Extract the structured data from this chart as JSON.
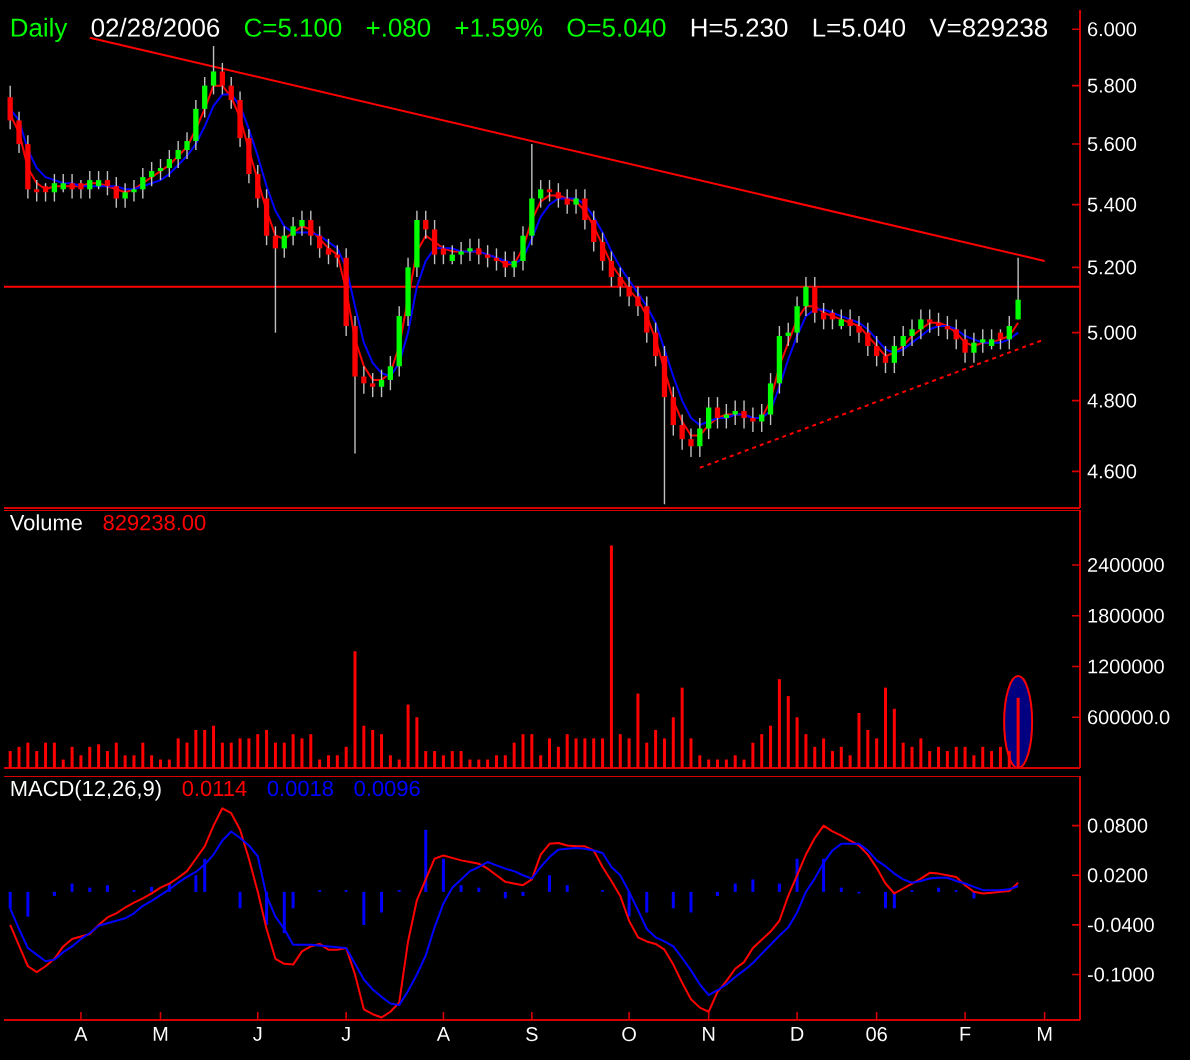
{
  "chart_data": [
    {
      "type": "candlestick",
      "title": "Daily",
      "annotations": [
        "02/28/2006",
        "C=5.100",
        "+.080",
        "+1.59%",
        "O=5.040",
        "H=5.230",
        "L=5.040",
        "V=829238"
      ],
      "categories": [
        null,
        null,
        null,
        null,
        null,
        null,
        null,
        null,
        null,
        null,
        null,
        null,
        null,
        null,
        null,
        null,
        null,
        null,
        null,
        null,
        null,
        null,
        null,
        null,
        null,
        null,
        null,
        null,
        null,
        null,
        null,
        null,
        null,
        null,
        null,
        null,
        null,
        null,
        null,
        null,
        null,
        null,
        null,
        null,
        null,
        null,
        null,
        null,
        null,
        null,
        null,
        null,
        null,
        null,
        null,
        null,
        null,
        null,
        null,
        null,
        null,
        null,
        null,
        null,
        null,
        null,
        null,
        null,
        null,
        null,
        null,
        null,
        null,
        null,
        null,
        null,
        null,
        null,
        null,
        null,
        null,
        null,
        null,
        null,
        null,
        null,
        null,
        null,
        null,
        null,
        null,
        null,
        null,
        null,
        null,
        null,
        null,
        null,
        null,
        null,
        null,
        null,
        null,
        null,
        null,
        null,
        null,
        null,
        null,
        null,
        null,
        null,
        null,
        null,
        null,
        null,
        null,
        null
      ],
      "ohlc": [
        [
          5.76,
          5.8,
          5.65,
          5.68
        ],
        [
          5.68,
          5.71,
          5.57,
          5.6
        ],
        [
          5.6,
          5.63,
          5.42,
          5.45
        ],
        [
          5.45,
          5.48,
          5.41,
          5.44
        ],
        [
          5.46,
          5.47,
          5.41,
          5.44
        ],
        [
          5.44,
          5.5,
          5.41,
          5.47
        ],
        [
          5.45,
          5.5,
          5.44,
          5.47
        ],
        [
          5.47,
          5.5,
          5.42,
          5.45
        ],
        [
          5.47,
          5.48,
          5.42,
          5.45
        ],
        [
          5.45,
          5.51,
          5.42,
          5.48
        ],
        [
          5.46,
          5.51,
          5.45,
          5.48
        ],
        [
          5.48,
          5.51,
          5.43,
          5.46
        ],
        [
          5.46,
          5.49,
          5.39,
          5.42
        ],
        [
          5.42,
          5.47,
          5.39,
          5.44
        ],
        [
          5.44,
          5.48,
          5.41,
          5.45
        ],
        [
          5.45,
          5.52,
          5.42,
          5.49
        ],
        [
          5.49,
          5.54,
          5.46,
          5.51
        ],
        [
          5.51,
          5.55,
          5.48,
          5.52
        ],
        [
          5.52,
          5.58,
          5.49,
          5.55
        ],
        [
          5.55,
          5.61,
          5.52,
          5.58
        ],
        [
          5.58,
          5.64,
          5.55,
          5.61
        ],
        [
          5.61,
          5.75,
          5.58,
          5.72
        ],
        [
          5.72,
          5.83,
          5.69,
          5.8
        ],
        [
          5.8,
          5.94,
          5.77,
          5.85
        ],
        [
          5.85,
          5.88,
          5.77,
          5.8
        ],
        [
          5.8,
          5.83,
          5.72,
          5.75
        ],
        [
          5.75,
          5.78,
          5.59,
          5.62
        ],
        [
          5.62,
          5.65,
          5.47,
          5.5
        ],
        [
          5.5,
          5.53,
          5.39,
          5.42
        ],
        [
          5.42,
          5.45,
          5.27,
          5.3
        ],
        [
          5.3,
          5.33,
          5.0,
          5.26
        ],
        [
          5.26,
          5.33,
          5.23,
          5.3
        ],
        [
          5.3,
          5.36,
          5.27,
          5.33
        ],
        [
          5.33,
          5.38,
          5.3,
          5.35
        ],
        [
          5.35,
          5.38,
          5.27,
          5.3
        ],
        [
          5.3,
          5.33,
          5.23,
          5.26
        ],
        [
          5.26,
          5.29,
          5.21,
          5.24
        ],
        [
          5.24,
          5.27,
          5.2,
          5.23
        ],
        [
          5.23,
          5.26,
          4.99,
          5.02
        ],
        [
          5.02,
          5.05,
          4.65,
          4.87
        ],
        [
          4.87,
          4.9,
          4.82,
          4.85
        ],
        [
          4.85,
          4.88,
          4.81,
          4.84
        ],
        [
          4.84,
          4.89,
          4.81,
          4.86
        ],
        [
          4.86,
          4.93,
          4.83,
          4.9
        ],
        [
          4.9,
          5.08,
          4.87,
          5.05
        ],
        [
          5.05,
          5.23,
          5.02,
          5.2
        ],
        [
          5.2,
          5.38,
          5.17,
          5.35
        ],
        [
          5.35,
          5.38,
          5.29,
          5.32
        ],
        [
          5.32,
          5.35,
          5.21,
          5.24
        ],
        [
          5.26,
          5.27,
          5.21,
          5.24
        ],
        [
          5.22,
          5.27,
          5.21,
          5.24
        ],
        [
          5.24,
          5.28,
          5.21,
          5.25
        ],
        [
          5.25,
          5.29,
          5.22,
          5.26
        ],
        [
          5.26,
          5.29,
          5.21,
          5.24
        ],
        [
          5.24,
          5.27,
          5.2,
          5.23
        ],
        [
          5.23,
          5.26,
          5.19,
          5.22
        ],
        [
          5.22,
          5.25,
          5.17,
          5.2
        ],
        [
          5.2,
          5.25,
          5.17,
          5.22
        ],
        [
          5.22,
          5.33,
          5.19,
          5.3
        ],
        [
          5.3,
          5.6,
          5.27,
          5.42
        ],
        [
          5.42,
          5.48,
          5.39,
          5.45
        ],
        [
          5.45,
          5.48,
          5.41,
          5.44
        ],
        [
          5.44,
          5.47,
          5.39,
          5.42
        ],
        [
          5.42,
          5.45,
          5.37,
          5.4
        ],
        [
          5.4,
          5.45,
          5.37,
          5.42
        ],
        [
          5.42,
          5.45,
          5.32,
          5.35
        ],
        [
          5.35,
          5.38,
          5.25,
          5.28
        ],
        [
          5.28,
          5.31,
          5.19,
          5.22
        ],
        [
          5.22,
          5.25,
          5.14,
          5.17
        ],
        [
          5.17,
          5.2,
          5.11,
          5.14
        ],
        [
          5.14,
          5.17,
          5.08,
          5.11
        ],
        [
          5.11,
          5.14,
          5.05,
          5.08
        ],
        [
          5.08,
          5.11,
          4.97,
          5.0
        ],
        [
          5.0,
          5.03,
          4.9,
          4.93
        ],
        [
          4.93,
          4.96,
          4.51,
          4.81
        ],
        [
          4.81,
          4.84,
          4.7,
          4.73
        ],
        [
          4.73,
          4.76,
          4.66,
          4.69
        ],
        [
          4.69,
          4.72,
          4.64,
          4.67
        ],
        [
          4.67,
          4.75,
          4.64,
          4.72
        ],
        [
          4.72,
          4.81,
          4.69,
          4.78
        ],
        [
          4.78,
          4.81,
          4.72,
          4.75
        ],
        [
          4.75,
          4.79,
          4.72,
          4.76
        ],
        [
          4.76,
          4.8,
          4.73,
          4.77
        ],
        [
          4.77,
          4.8,
          4.72,
          4.75
        ],
        [
          4.75,
          4.78,
          4.71,
          4.74
        ],
        [
          4.74,
          4.79,
          4.71,
          4.76
        ],
        [
          4.76,
          4.88,
          4.73,
          4.85
        ],
        [
          4.85,
          5.02,
          4.82,
          4.99
        ],
        [
          4.99,
          5.03,
          4.96,
          5.0
        ],
        [
          5.0,
          5.11,
          4.97,
          5.08
        ],
        [
          5.08,
          5.17,
          5.05,
          5.14
        ],
        [
          5.14,
          5.17,
          5.03,
          5.06
        ],
        [
          5.06,
          5.09,
          5.01,
          5.04
        ],
        [
          5.06,
          5.07,
          5.01,
          5.04
        ],
        [
          5.02,
          5.07,
          5.01,
          5.04
        ],
        [
          5.04,
          5.07,
          4.99,
          5.02
        ],
        [
          5.02,
          5.05,
          4.97,
          5.0
        ],
        [
          5.0,
          5.03,
          4.93,
          4.96
        ],
        [
          4.96,
          4.99,
          4.9,
          4.93
        ],
        [
          4.93,
          4.96,
          4.88,
          4.91
        ],
        [
          4.91,
          4.99,
          4.88,
          4.96
        ],
        [
          4.96,
          5.02,
          4.93,
          4.99
        ],
        [
          4.99,
          5.04,
          4.96,
          5.01
        ],
        [
          5.01,
          5.07,
          4.98,
          5.04
        ],
        [
          5.04,
          5.07,
          5.0,
          5.03
        ],
        [
          5.03,
          5.06,
          4.99,
          5.02
        ],
        [
          5.02,
          5.05,
          4.98,
          5.01
        ],
        [
          5.01,
          5.04,
          4.95,
          4.98
        ],
        [
          4.98,
          5.01,
          4.91,
          4.94
        ],
        [
          4.94,
          5.0,
          4.91,
          4.97
        ],
        [
          4.97,
          5.01,
          4.94,
          4.98
        ],
        [
          4.96,
          5.01,
          4.95,
          4.98
        ],
        [
          5.0,
          5.01,
          4.95,
          4.98
        ],
        [
          4.98,
          5.05,
          4.95,
          5.02
        ],
        [
          5.04,
          5.23,
          5.04,
          5.1
        ],
        null,
        null,
        null
      ],
      "series": [
        {
          "type": "line",
          "color": "#ff0000",
          "values": [
            5.7,
            5.64,
            5.52,
            5.47,
            5.45,
            5.46,
            5.46,
            5.46,
            5.46,
            5.47,
            5.47,
            5.46,
            5.45,
            5.44,
            5.45,
            5.47,
            5.49,
            5.51,
            5.53,
            5.56,
            5.59,
            5.65,
            5.72,
            5.8,
            5.8,
            5.76,
            5.69,
            5.58,
            5.48,
            5.38,
            5.3,
            5.29,
            5.31,
            5.33,
            5.32,
            5.29,
            5.26,
            5.24,
            5.13,
            4.98,
            4.9,
            4.86,
            4.86,
            4.88,
            4.96,
            null,
            5.25,
            5.3,
            5.28,
            5.26,
            5.25,
            5.25,
            5.25,
            5.25,
            5.24,
            5.23,
            5.21,
            5.21,
            5.26,
            5.35,
            5.41,
            5.43,
            5.43,
            5.42,
            5.41,
            5.38,
            5.33,
            5.27,
            5.21,
            5.17,
            5.13,
            5.1,
            5.05,
            4.98,
            4.89,
            4.8,
            4.74,
            4.7,
            4.7,
            4.73,
            4.75,
            4.76,
            4.76,
            4.76,
            4.75,
            4.75,
            4.8,
            4.9,
            4.97,
            5.04,
            5.08,
            5.08,
            5.06,
            5.05,
            5.04,
            5.03,
            5.02,
            4.99,
            4.96,
            4.93,
            4.94,
            4.96,
            4.99,
            5.01,
            5.03,
            5.03,
            5.02,
            5.0,
            4.97,
            4.96,
            4.97,
            4.97,
            4.98,
            4.99,
            5.03,
            null,
            null,
            null
          ]
        },
        {
          "type": "line",
          "color": "#0000ff",
          "values": [
            5.72,
            5.68,
            5.58,
            5.52,
            5.49,
            5.48,
            5.47,
            5.47,
            5.46,
            5.46,
            5.46,
            5.46,
            5.46,
            5.45,
            5.45,
            5.46,
            5.47,
            5.48,
            5.5,
            5.53,
            5.56,
            5.6,
            5.66,
            5.73,
            5.77,
            5.77,
            5.73,
            5.65,
            5.56,
            5.46,
            5.38,
            5.33,
            5.31,
            5.31,
            5.31,
            5.3,
            5.28,
            5.26,
            5.2,
            5.08,
            4.97,
            4.91,
            4.88,
            4.87,
            4.91,
            5.0,
            5.14,
            5.22,
            5.26,
            5.26,
            5.26,
            5.25,
            5.25,
            5.25,
            5.24,
            5.23,
            5.22,
            5.21,
            5.23,
            5.29,
            5.36,
            5.4,
            5.42,
            5.42,
            5.42,
            5.4,
            5.36,
            5.31,
            5.25,
            5.2,
            5.16,
            5.12,
            5.08,
            5.03,
            4.95,
            4.87,
            4.8,
            4.75,
            4.73,
            4.74,
            4.75,
            4.75,
            4.76,
            4.76,
            4.75,
            4.75,
            4.77,
            4.84,
            4.92,
            4.99,
            5.05,
            5.07,
            5.07,
            5.06,
            5.05,
            5.04,
            5.03,
            5.01,
            4.98,
            4.95,
            4.94,
            4.95,
            4.97,
            4.99,
            5.01,
            5.02,
            5.02,
            5.01,
            4.99,
            4.98,
            4.97,
            4.97,
            4.97,
            4.98,
            5.0,
            null,
            null,
            null
          ]
        },
        {
          "type": "line",
          "color": "#ff0000",
          "line_style": "solid",
          "values": [
            null,
            null,
            null,
            null,
            null,
            null,
            null,
            null,
            null,
            5.97,
            null,
            null,
            null,
            null,
            null,
            null,
            null,
            null,
            null,
            null,
            null,
            null,
            null,
            null,
            null,
            null,
            null,
            null,
            null,
            null,
            null,
            null,
            null,
            null,
            null,
            null,
            null,
            null,
            null,
            null,
            null,
            null,
            null,
            null,
            null,
            null,
            null,
            null,
            null,
            null,
            null,
            null,
            null,
            null,
            null,
            null,
            null,
            null,
            null,
            null,
            null,
            null,
            null,
            null,
            null,
            null,
            null,
            null,
            null,
            null,
            null,
            null,
            null,
            null,
            null,
            null,
            null,
            null,
            null,
            null,
            null,
            null,
            null,
            null,
            null,
            null,
            null,
            null,
            null,
            null,
            null,
            null,
            null,
            null,
            null,
            null,
            null,
            null,
            null,
            null,
            null,
            null,
            null,
            null,
            null,
            null,
            null,
            null,
            null,
            null,
            null,
            null,
            null,
            null,
            null,
            null,
            null,
            5.22
          ]
        },
        {
          "type": "line",
          "color": "#ff0000",
          "line_style": "dotted",
          "values": [
            null,
            null,
            null,
            null,
            null,
            null,
            null,
            null,
            null,
            null,
            null,
            null,
            null,
            null,
            null,
            null,
            null,
            null,
            null,
            null,
            null,
            null,
            null,
            null,
            null,
            null,
            null,
            null,
            null,
            null,
            null,
            null,
            null,
            null,
            null,
            null,
            null,
            null,
            null,
            null,
            null,
            null,
            null,
            null,
            null,
            null,
            null,
            null,
            null,
            null,
            null,
            null,
            null,
            null,
            null,
            null,
            null,
            null,
            null,
            null,
            null,
            null,
            null,
            null,
            null,
            null,
            null,
            null,
            null,
            null,
            null,
            null,
            null,
            null,
            null,
            null,
            null,
            null,
            4.61,
            null,
            null,
            null,
            null,
            null,
            null,
            null,
            null,
            null,
            null,
            null,
            null,
            null,
            null,
            null,
            null,
            null,
            null,
            null,
            null,
            null,
            null,
            null,
            null,
            null,
            null,
            null,
            null,
            null,
            null,
            null,
            null,
            null,
            null,
            null,
            null,
            null,
            null,
            4.98
          ]
        }
      ],
      "ref_lines": [
        {
          "axis": "y",
          "value": 5.14,
          "color": "#ff0000"
        }
      ],
      "log": "y",
      "ylim": [
        4.5,
        6.07
      ],
      "yticks": [
        {
          "value": 6,
          "label": "6.000"
        },
        {
          "value": 5.8,
          "label": "5.800"
        },
        {
          "value": 5.6,
          "label": "5.600"
        },
        {
          "value": 5.4,
          "label": "5.400"
        },
        {
          "value": 5.2,
          "label": "5.200"
        },
        {
          "value": 5,
          "label": "5.000"
        },
        {
          "value": 4.8,
          "label": "4.800"
        },
        {
          "value": 4.6,
          "label": "4.600"
        }
      ],
      "tick_labels": "y"
    },
    {
      "type": "bar",
      "title": "Volume",
      "subtitle": "829238.00",
      "color": "#ff0000",
      "categories": [
        null,
        null,
        null,
        null,
        null,
        null,
        null,
        null,
        null,
        null,
        null,
        null,
        null,
        null,
        null,
        null,
        null,
        null,
        null,
        null,
        null,
        null,
        null,
        null,
        null,
        null,
        null,
        null,
        null,
        null,
        null,
        null,
        null,
        null,
        null,
        null,
        null,
        null,
        null,
        null,
        null,
        null,
        null,
        null,
        null,
        null,
        null,
        null,
        null,
        null,
        null,
        null,
        null,
        null,
        null,
        null,
        null,
        null,
        null,
        null,
        null,
        null,
        null,
        null,
        null,
        null,
        null,
        null,
        null,
        null,
        null,
        null,
        null,
        null,
        null,
        null,
        null,
        null,
        null,
        null,
        null,
        null,
        null,
        null,
        null,
        null,
        null,
        null,
        null,
        null,
        null,
        null,
        null,
        null,
        null,
        null,
        null,
        null,
        null,
        null,
        null,
        null,
        null,
        null,
        null,
        null,
        null,
        null,
        null,
        null,
        null,
        null,
        null,
        null,
        null,
        null,
        null,
        null
      ],
      "values": [
        200000,
        250000,
        300000,
        200000,
        300000,
        300000,
        100000,
        250000,
        150000,
        250000,
        280000,
        200000,
        300000,
        150000,
        150000,
        300000,
        150000,
        100000,
        100000,
        350000,
        300000,
        450000,
        450000,
        500000,
        300000,
        300000,
        350000,
        350000,
        400000,
        450000,
        300000,
        300000,
        400000,
        350000,
        400000,
        100000,
        150000,
        150000,
        250000,
        1380000,
        500000,
        450000,
        400000,
        150000,
        100000,
        750000,
        600000,
        200000,
        200000,
        150000,
        200000,
        200000,
        100000,
        100000,
        100000,
        150000,
        150000,
        300000,
        400000,
        400000,
        150000,
        350000,
        250000,
        400000,
        350000,
        350000,
        350000,
        350000,
        2630000,
        400000,
        350000,
        880000,
        300000,
        450000,
        350000,
        600000,
        950000,
        350000,
        150000,
        100000,
        100000,
        100000,
        150000,
        100000,
        300000,
        400000,
        500000,
        1050000,
        850000,
        600000,
        400000,
        250000,
        350000,
        200000,
        250000,
        150000,
        650000,
        450000,
        350000,
        950000,
        700000,
        300000,
        250000,
        350000,
        200000,
        250000,
        200000,
        250000,
        250000,
        150000,
        250000,
        200000,
        250000,
        200000,
        830000,
        null,
        null,
        null
      ],
      "ylim": [
        0,
        3050000
      ],
      "yticks": [
        {
          "value": 2400000,
          "label": "2400000"
        },
        {
          "value": 1800000,
          "label": "1800000"
        },
        {
          "value": 1200000,
          "label": "1200000"
        },
        {
          "value": 600000,
          "label": "600000.0"
        }
      ],
      "tick_labels": "y"
    },
    {
      "type": "line",
      "title": "MACD(12,26,9)",
      "annotations": [
        "0.0114",
        "0.0018",
        "0.0096"
      ],
      "categories": [
        null,
        null,
        null,
        null,
        null,
        null,
        null,
        null,
        "A",
        null,
        null,
        null,
        null,
        null,
        null,
        null,
        null,
        "M",
        null,
        null,
        null,
        null,
        null,
        null,
        null,
        null,
        null,
        null,
        "J",
        null,
        null,
        null,
        null,
        null,
        null,
        null,
        null,
        null,
        "J",
        null,
        null,
        null,
        null,
        null,
        null,
        null,
        null,
        null,
        null,
        "A",
        null,
        null,
        null,
        null,
        null,
        null,
        null,
        null,
        null,
        "S",
        null,
        null,
        null,
        null,
        null,
        null,
        null,
        null,
        null,
        null,
        "O",
        null,
        null,
        null,
        null,
        null,
        null,
        null,
        null,
        "N",
        null,
        null,
        null,
        null,
        null,
        null,
        null,
        null,
        null,
        "D",
        null,
        null,
        null,
        null,
        null,
        null,
        null,
        null,
        "06",
        null,
        null,
        null,
        null,
        null,
        null,
        null,
        null,
        null,
        "F",
        null,
        null,
        null,
        null,
        null,
        null,
        null,
        null,
        "M"
      ],
      "series": [
        {
          "type": "bar",
          "color": "#0000ff",
          "values": [
            -0.02,
            null,
            -0.03,
            null,
            null,
            -0.005,
            null,
            0.01,
            null,
            0.005,
            null,
            0.008,
            null,
            null,
            0.002,
            null,
            0.006,
            null,
            0.01,
            null,
            null,
            0.02,
            0.04,
            null,
            null,
            null,
            -0.02,
            null,
            null,
            -0.04,
            null,
            -0.05,
            -0.02,
            null,
            null,
            0.002,
            null,
            null,
            0.002,
            null,
            -0.04,
            null,
            -0.025,
            null,
            0.002,
            null,
            null,
            0.075,
            null,
            0.04,
            null,
            0.008,
            null,
            0.005,
            null,
            null,
            -0.008,
            null,
            -0.005,
            null,
            null,
            0.02,
            null,
            0.008,
            null,
            null,
            null,
            0.002,
            null,
            null,
            -0.03,
            null,
            -0.025,
            null,
            null,
            -0.02,
            null,
            -0.025,
            null,
            null,
            -0.005,
            null,
            0.01,
            null,
            0.015,
            null,
            null,
            0.01,
            null,
            0.04,
            null,
            null,
            0.04,
            null,
            0.005,
            null,
            -0.002,
            null,
            null,
            -0.02,
            -0.02,
            null,
            0.002,
            null,
            null,
            0.005,
            null,
            0.002,
            null,
            -0.008,
            null,
            null,
            null,
            null,
            null,
            null,
            null,
            null
          ]
        },
        {
          "type": "line",
          "color": "#ff0000",
          "values": [
            -0.04,
            -0.065,
            -0.09,
            -0.097,
            -0.09,
            -0.081,
            -0.066,
            -0.057,
            -0.054,
            -0.051,
            -0.04,
            -0.031,
            -0.026,
            -0.019,
            -0.013,
            -0.008,
            -0.002,
            0.005,
            0.01,
            0.017,
            0.025,
            0.04,
            0.055,
            0.08,
            0.101,
            0.095,
            0.075,
            0.04,
            0.0,
            -0.045,
            -0.081,
            -0.087,
            -0.088,
            -0.072,
            -0.066,
            -0.063,
            -0.07,
            -0.07,
            -0.068,
            -0.1,
            -0.142,
            -0.148,
            -0.152,
            -0.145,
            -0.134,
            -0.06,
            -0.01,
            0.015,
            0.04,
            0.044,
            0.041,
            0.038,
            0.036,
            0.034,
            0.028,
            0.02,
            0.012,
            0.01,
            0.008,
            0.015,
            0.045,
            0.058,
            0.059,
            0.056,
            0.055,
            0.055,
            0.05,
            0.03,
            0.013,
            -0.005,
            -0.035,
            -0.055,
            -0.06,
            -0.063,
            -0.07,
            -0.088,
            -0.11,
            -0.13,
            -0.14,
            -0.145,
            -0.121,
            -0.108,
            -0.093,
            -0.085,
            -0.068,
            -0.058,
            -0.048,
            -0.035,
            -0.005,
            0.02,
            0.045,
            0.065,
            0.08,
            0.073,
            0.068,
            0.062,
            0.056,
            0.045,
            0.029,
            0.01,
            -0.002,
            0.004,
            0.01,
            0.016,
            0.023,
            0.022,
            0.02,
            0.018,
            0.008,
            0.0,
            -0.002,
            -0.001,
            0.0,
            0.001,
            0.011,
            null,
            null,
            null
          ]
        },
        {
          "type": "line",
          "color": "#0000ff",
          "values": [
            -0.02,
            -0.045,
            -0.068,
            -0.076,
            -0.084,
            -0.082,
            -0.073,
            -0.066,
            -0.057,
            -0.05,
            -0.041,
            -0.038,
            -0.035,
            -0.032,
            -0.026,
            -0.017,
            -0.011,
            -0.004,
            0.003,
            0.011,
            0.018,
            0.024,
            0.033,
            0.045,
            0.062,
            0.073,
            0.065,
            0.056,
            0.043,
            -0.005,
            -0.03,
            -0.045,
            -0.064,
            -0.064,
            -0.064,
            -0.065,
            -0.066,
            -0.067,
            -0.068,
            -0.087,
            -0.106,
            -0.118,
            -0.127,
            -0.135,
            -0.137,
            -0.12,
            -0.1,
            -0.077,
            -0.043,
            -0.014,
            0.005,
            0.015,
            0.025,
            0.03,
            0.036,
            0.032,
            0.028,
            0.025,
            0.02,
            0.016,
            0.03,
            0.042,
            0.051,
            0.052,
            0.053,
            0.052,
            0.05,
            0.047,
            0.03,
            0.02,
            0.0,
            -0.022,
            -0.045,
            -0.055,
            -0.06,
            -0.066,
            -0.08,
            -0.095,
            -0.112,
            -0.125,
            -0.119,
            -0.112,
            -0.103,
            -0.095,
            -0.086,
            -0.075,
            -0.064,
            -0.053,
            -0.043,
            -0.025,
            0.0,
            0.016,
            0.035,
            0.05,
            0.058,
            0.058,
            0.058,
            0.05,
            0.038,
            0.031,
            0.022,
            0.015,
            0.011,
            0.013,
            0.016,
            0.017,
            0.017,
            0.013,
            0.01,
            0.006,
            0.002,
            0.002,
            0.002,
            0.003,
            0.007,
            null,
            null,
            null
          ]
        }
      ],
      "ylim": [
        -0.155,
        0.14
      ],
      "yticks": [
        {
          "value": 0.08,
          "label": "0.0800"
        },
        {
          "value": 0.02,
          "label": "0.0200"
        },
        {
          "value": -0.04,
          "label": "-0.0400"
        },
        {
          "value": -0.1,
          "label": "-0.1000"
        }
      ]
    }
  ]
}
